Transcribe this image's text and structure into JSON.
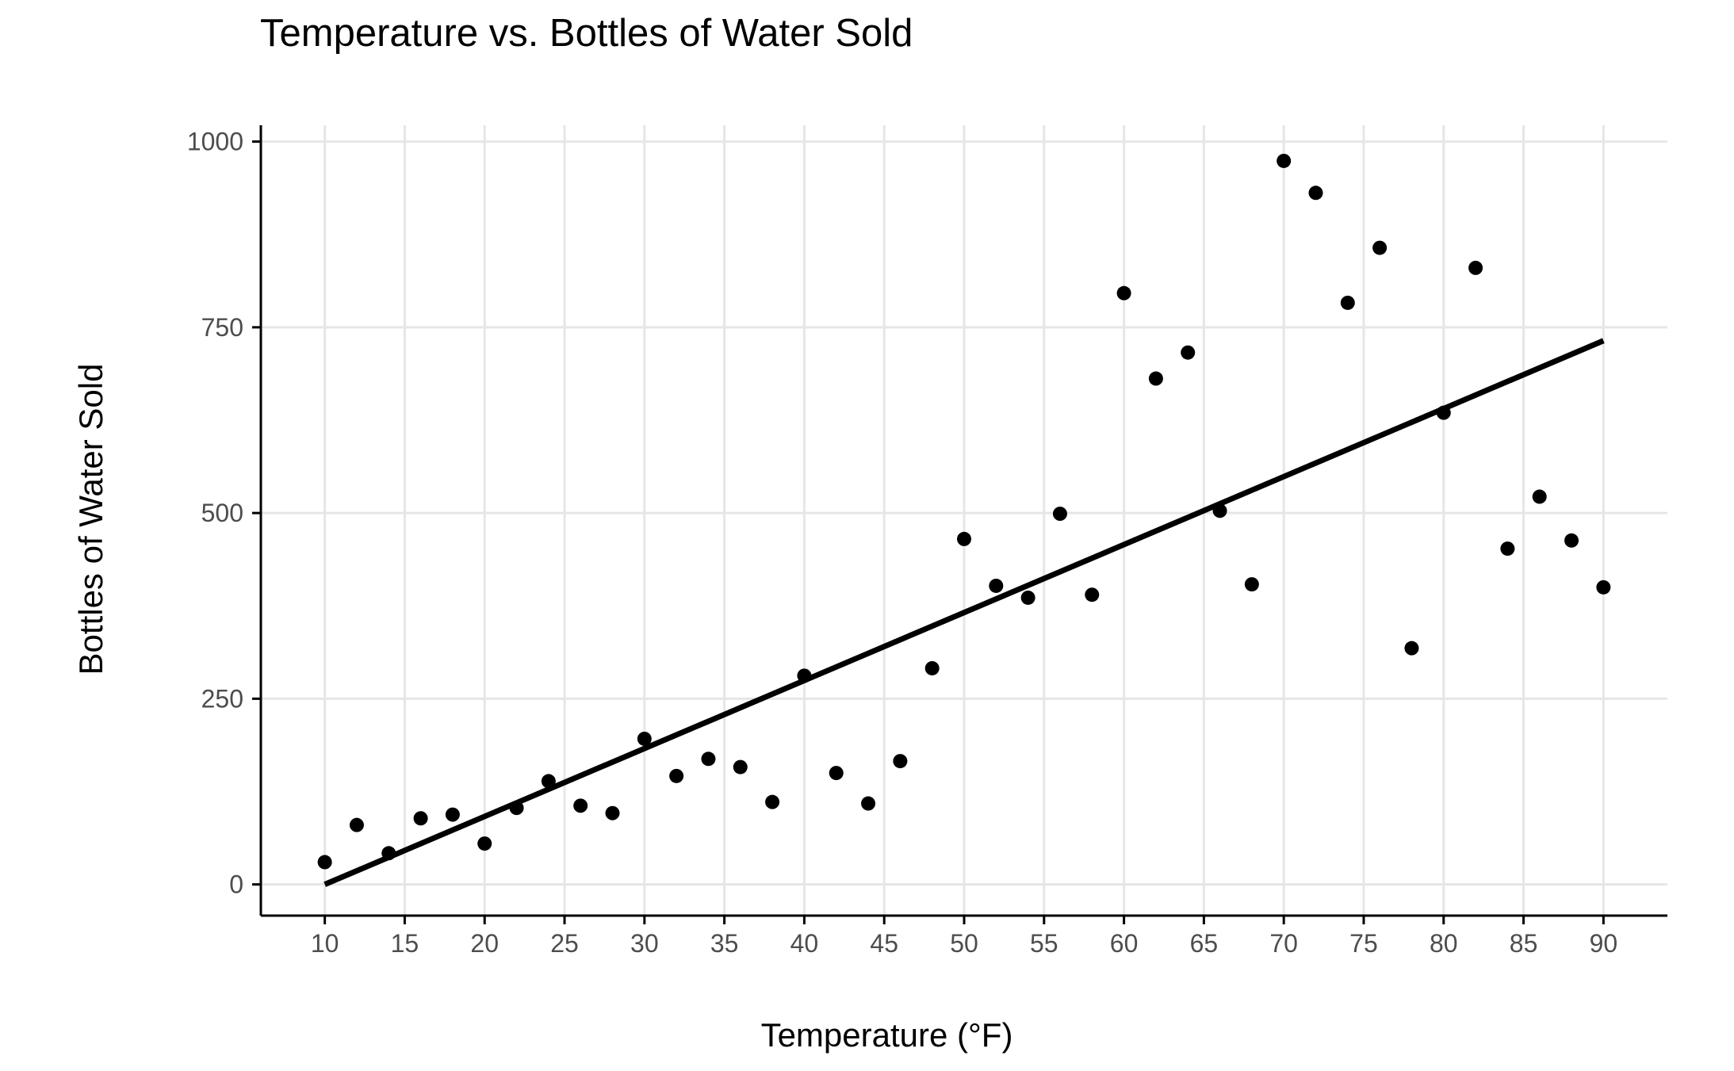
{
  "chart_data": {
    "type": "scatter",
    "title": "Temperature vs. Bottles of Water Sold",
    "xlabel": "Temperature (°F)",
    "ylabel": "Bottles of Water Sold",
    "xlim": [
      6,
      94
    ],
    "ylim": [
      -42,
      1022
    ],
    "xticks": [
      10,
      15,
      20,
      25,
      30,
      35,
      40,
      45,
      50,
      55,
      60,
      65,
      70,
      75,
      80,
      85,
      90
    ],
    "yticks": [
      0,
      250,
      500,
      750,
      1000
    ],
    "grid": true,
    "legend": "none",
    "colors": {
      "points": "#000000",
      "trend_line": "#000000",
      "grid": "#e6e6e6",
      "axis": "#000000",
      "tick_label": "#4d4d4d"
    },
    "points": {
      "x": [
        10,
        12,
        14,
        16,
        18,
        20,
        22,
        24,
        26,
        28,
        30,
        32,
        34,
        36,
        38,
        40,
        42,
        44,
        46,
        48,
        50,
        52,
        54,
        56,
        58,
        60,
        62,
        64,
        66,
        68,
        70,
        72,
        74,
        76,
        78,
        80,
        82,
        84,
        86,
        88,
        90
      ],
      "y": [
        30,
        80,
        42,
        89,
        94,
        55,
        103,
        139,
        106,
        96,
        196,
        146,
        169,
        158,
        111,
        281,
        150,
        109,
        166,
        291,
        465,
        402,
        386,
        499,
        390,
        796,
        681,
        716,
        503,
        404,
        974,
        931,
        783,
        857,
        318,
        635,
        830,
        452,
        522,
        463,
        400
      ]
    },
    "trend_line": {
      "x": [
        10,
        90
      ],
      "y": [
        0,
        732
      ]
    }
  }
}
